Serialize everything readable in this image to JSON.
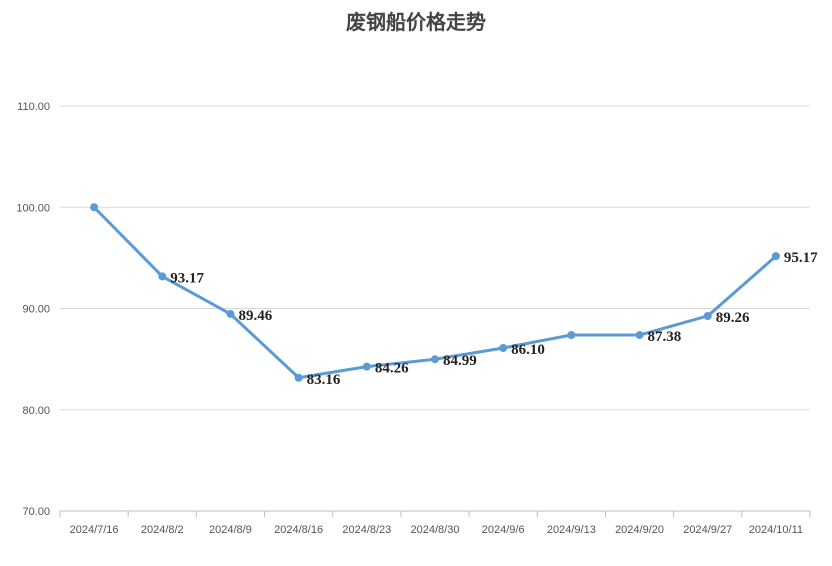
{
  "chart_data": {
    "type": "line",
    "title": "废钢船价格走势",
    "xlabel": "",
    "ylabel": "",
    "x": [
      "2024/7/16",
      "2024/8/2",
      "2024/8/9",
      "2024/8/16",
      "2024/8/23",
      "2024/8/30",
      "2024/9/6",
      "2024/9/13",
      "2024/9/20",
      "2024/9/27",
      "2024/10/11"
    ],
    "series": [
      {
        "values": [
          100.0,
          93.17,
          89.46,
          83.16,
          84.26,
          84.99,
          86.1,
          87.38,
          87.38,
          89.26,
          95.17
        ],
        "data_labels": [
          "",
          "93.17",
          "89.46",
          "83.16",
          "84.26",
          "84.99",
          "86.10",
          "",
          "87.38",
          "89.26",
          "95.17"
        ]
      }
    ],
    "ylim": [
      70,
      110
    ],
    "yticks": [
      "70.00",
      "80.00",
      "90.00",
      "100.00",
      "110.00"
    ],
    "grid": true,
    "legend": "none",
    "line_color": "#5b9bd5",
    "grid_color": "#d9d9d9"
  }
}
